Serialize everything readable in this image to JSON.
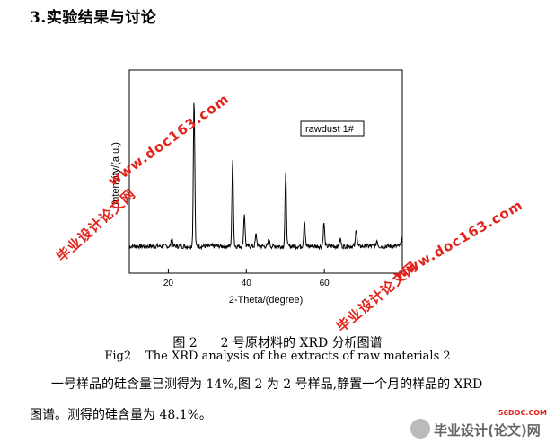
{
  "section_heading": "3.实验结果与讨论",
  "caption_cn": {
    "num": "图 2",
    "text": "2 号原材料的 XRD 分析图谱"
  },
  "caption_en": {
    "num": "Fig2",
    "text": "The XRD analysis of the extracts of raw materials 2"
  },
  "paragraph1": "一号样品的硅含量已测得为 14%,图 2 为 2 号样品,静置一个月的样品的 XRD",
  "paragraph2": "图谱。测得的硅含量为 48.1%。",
  "watermarks": {
    "url": "www.doc163.com",
    "site_name": "毕业设计论文网"
  },
  "logo": {
    "url": "56DOC.COM",
    "text": "毕业设计(论文)网"
  },
  "chart_data": {
    "type": "line",
    "xlabel": "2-Theta/(degree)",
    "ylabel": "Intensity/(a.u.)",
    "xlim": [
      10,
      80
    ],
    "xticks": [
      20,
      40,
      60
    ],
    "legend": "rawdust 1#",
    "legend_placement": "top-right",
    "grid": false,
    "series": [
      {
        "name": "rawdust 1#",
        "baseline": 12,
        "peaks": [
          {
            "x": 26.6,
            "y": 100
          },
          {
            "x": 20.9,
            "y": 6
          },
          {
            "x": 36.5,
            "y": 58
          },
          {
            "x": 39.5,
            "y": 22
          },
          {
            "x": 42.5,
            "y": 8
          },
          {
            "x": 45.8,
            "y": 5
          },
          {
            "x": 50.1,
            "y": 48
          },
          {
            "x": 54.9,
            "y": 18
          },
          {
            "x": 59.9,
            "y": 16
          },
          {
            "x": 64.1,
            "y": 5
          },
          {
            "x": 68.2,
            "y": 12
          },
          {
            "x": 73.5,
            "y": 4
          },
          {
            "x": 79.9,
            "y": 6
          }
        ]
      }
    ],
    "colors": {
      "line": "#000000",
      "axes": "#000000"
    }
  }
}
